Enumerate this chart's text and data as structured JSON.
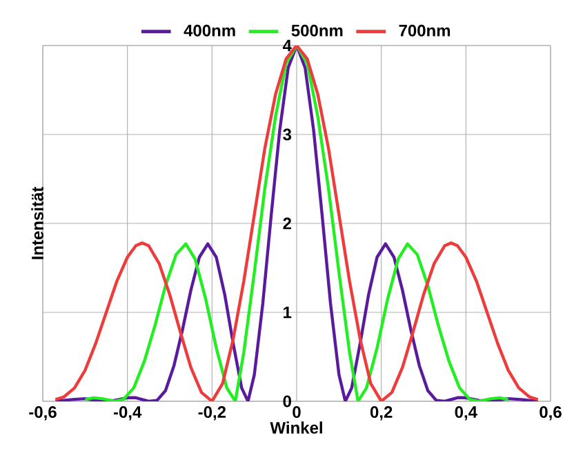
{
  "chart_data": {
    "type": "line",
    "xlabel": "Winkel",
    "ylabel": "Intensität",
    "xlim": [
      -0.6,
      0.6
    ],
    "ylim": [
      0,
      4
    ],
    "xticks": [
      {
        "value": -0.6,
        "label": "-0,6"
      },
      {
        "value": -0.4,
        "label": "-0,4"
      },
      {
        "value": -0.2,
        "label": "-0,2"
      },
      0,
      {
        "value": 0.2,
        "label": "0,2"
      },
      {
        "value": 0.4,
        "label": "0,4"
      },
      {
        "value": 0.6,
        "label": "0,6"
      }
    ],
    "yticks": [
      0,
      1,
      2,
      3,
      4
    ],
    "grid": true,
    "legend": "top",
    "series": [
      {
        "name": "400nm",
        "color": "#5a1a9e",
        "x": [
          -0.57,
          -0.53,
          -0.5,
          -0.46,
          -0.43,
          -0.4,
          -0.38,
          -0.35,
          -0.33,
          -0.31,
          -0.29,
          -0.27,
          -0.25,
          -0.23,
          -0.21,
          -0.19,
          -0.17,
          -0.15,
          -0.13,
          -0.115,
          -0.1,
          -0.08,
          -0.06,
          -0.04,
          -0.02,
          0,
          0.02,
          0.04,
          0.06,
          0.08,
          0.1,
          0.115,
          0.13,
          0.15,
          0.17,
          0.19,
          0.21,
          0.23,
          0.25,
          0.27,
          0.29,
          0.31,
          0.33,
          0.35,
          0.38,
          0.4,
          0.43,
          0.46,
          0.5,
          0.53,
          0.57
        ],
        "values": [
          0,
          0.02,
          0.03,
          0,
          0.01,
          0.04,
          0.04,
          0,
          0.01,
          0.12,
          0.4,
          0.8,
          1.25,
          1.62,
          1.77,
          1.62,
          1.2,
          0.65,
          0.15,
          0,
          0.3,
          1.1,
          2.1,
          3.05,
          3.75,
          4,
          3.75,
          3.05,
          2.1,
          1.1,
          0.3,
          0,
          0.15,
          0.65,
          1.2,
          1.62,
          1.77,
          1.62,
          1.25,
          0.8,
          0.4,
          0.12,
          0.01,
          0,
          0.04,
          0.04,
          0.01,
          0,
          0.03,
          0.02,
          0
        ]
      },
      {
        "name": "500nm",
        "color": "#22ee22",
        "x": [
          -0.5,
          -0.48,
          -0.46,
          -0.43,
          -0.41,
          -0.385,
          -0.36,
          -0.335,
          -0.31,
          -0.285,
          -0.262,
          -0.24,
          -0.215,
          -0.19,
          -0.165,
          -0.145,
          -0.125,
          -0.1,
          -0.075,
          -0.05,
          -0.025,
          0,
          0.025,
          0.05,
          0.075,
          0.1,
          0.125,
          0.145,
          0.165,
          0.19,
          0.215,
          0.24,
          0.262,
          0.285,
          0.31,
          0.335,
          0.36,
          0.385,
          0.41,
          0.43,
          0.46,
          0.48,
          0.5
        ],
        "values": [
          0.02,
          0.04,
          0.03,
          0,
          0.02,
          0.15,
          0.45,
          0.85,
          1.3,
          1.65,
          1.77,
          1.6,
          1.15,
          0.6,
          0.15,
          0,
          0.55,
          1.45,
          2.4,
          3.2,
          3.8,
          4,
          3.8,
          3.2,
          2.4,
          1.45,
          0.55,
          0,
          0.15,
          0.6,
          1.15,
          1.6,
          1.77,
          1.65,
          1.3,
          0.85,
          0.45,
          0.15,
          0.02,
          0,
          0.03,
          0.04,
          0.02
        ]
      },
      {
        "name": "700nm",
        "color": "#ee3b3b",
        "x": [
          -0.57,
          -0.55,
          -0.525,
          -0.5,
          -0.475,
          -0.45,
          -0.425,
          -0.4,
          -0.38,
          -0.365,
          -0.35,
          -0.325,
          -0.3,
          -0.275,
          -0.25,
          -0.225,
          -0.2,
          -0.175,
          -0.15,
          -0.125,
          -0.1,
          -0.075,
          -0.05,
          -0.025,
          0,
          0.025,
          0.05,
          0.075,
          0.1,
          0.125,
          0.15,
          0.175,
          0.2,
          0.225,
          0.25,
          0.275,
          0.3,
          0.325,
          0.35,
          0.365,
          0.38,
          0.4,
          0.425,
          0.45,
          0.475,
          0.5,
          0.525,
          0.55,
          0.57
        ],
        "values": [
          0.02,
          0.05,
          0.15,
          0.35,
          0.65,
          1.0,
          1.35,
          1.62,
          1.75,
          1.78,
          1.75,
          1.55,
          1.2,
          0.78,
          0.38,
          0.1,
          0,
          0.2,
          0.7,
          1.35,
          2.1,
          2.85,
          3.45,
          3.85,
          4,
          3.85,
          3.45,
          2.85,
          2.1,
          1.35,
          0.7,
          0.2,
          0,
          0.1,
          0.38,
          0.78,
          1.2,
          1.55,
          1.75,
          1.78,
          1.75,
          1.62,
          1.35,
          1.0,
          0.65,
          0.35,
          0.15,
          0.05,
          0.02
        ]
      }
    ]
  }
}
